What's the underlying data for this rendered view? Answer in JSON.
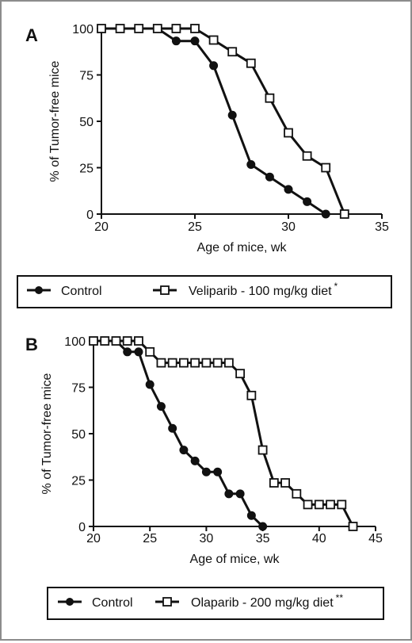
{
  "chart_data": [
    {
      "panel": "A",
      "type": "line",
      "xlabel": "Age of mice, wk",
      "ylabel": "% of Tumor-free mice",
      "xlim": [
        20,
        35
      ],
      "ylim": [
        0,
        100
      ],
      "xticks": [
        "20",
        "25",
        "30",
        "35"
      ],
      "yticks": [
        "0",
        "25",
        "50",
        "75",
        "100"
      ],
      "grid": false,
      "legend_position": "bottom",
      "series": [
        {
          "name": "Control",
          "marker": "filled-circle",
          "points": [
            [
              20,
              100
            ],
            [
              21,
              100
            ],
            [
              22,
              100
            ],
            [
              23,
              100
            ],
            [
              24,
              93.3
            ],
            [
              25,
              93.3
            ],
            [
              26,
              80
            ],
            [
              27,
              53.3
            ],
            [
              28,
              26.7
            ],
            [
              29,
              20
            ],
            [
              30,
              13.3
            ],
            [
              31,
              6.7
            ],
            [
              32,
              0
            ]
          ]
        },
        {
          "name": "Veliparib - 100 mg/kg diet",
          "significance": "*",
          "marker": "open-square",
          "points": [
            [
              20,
              100
            ],
            [
              21,
              100
            ],
            [
              22,
              100
            ],
            [
              23,
              100
            ],
            [
              24,
              100
            ],
            [
              25,
              100
            ],
            [
              26,
              93.8
            ],
            [
              27,
              87.5
            ],
            [
              28,
              81.3
            ],
            [
              29,
              62.5
            ],
            [
              30,
              43.8
            ],
            [
              31,
              31.3
            ],
            [
              32,
              25
            ],
            [
              33,
              0
            ]
          ]
        }
      ]
    },
    {
      "panel": "B",
      "type": "line",
      "xlabel": "Age of mice, wk",
      "ylabel": "% of Tumor-free mice",
      "xlim": [
        20,
        45
      ],
      "ylim": [
        0,
        100
      ],
      "xticks": [
        "20",
        "25",
        "30",
        "35",
        "40",
        "45"
      ],
      "yticks": [
        "0",
        "25",
        "50",
        "75",
        "100"
      ],
      "grid": false,
      "legend_position": "bottom",
      "series": [
        {
          "name": "Control",
          "marker": "filled-circle",
          "points": [
            [
              20,
              100
            ],
            [
              21,
              100
            ],
            [
              22,
              100
            ],
            [
              23,
              94.1
            ],
            [
              24,
              94.1
            ],
            [
              25,
              76.5
            ],
            [
              26,
              64.7
            ],
            [
              27,
              52.9
            ],
            [
              28,
              41.2
            ],
            [
              29,
              35.3
            ],
            [
              30,
              29.4
            ],
            [
              31,
              29.4
            ],
            [
              32,
              17.6
            ],
            [
              33,
              17.6
            ],
            [
              34,
              5.9
            ],
            [
              35,
              0
            ]
          ]
        },
        {
          "name": "Olaparib - 200 mg/kg diet",
          "significance": "**",
          "marker": "open-square",
          "points": [
            [
              20,
              100
            ],
            [
              21,
              100
            ],
            [
              22,
              100
            ],
            [
              23,
              100
            ],
            [
              24,
              100
            ],
            [
              25,
              94.1
            ],
            [
              26,
              88.2
            ],
            [
              27,
              88.2
            ],
            [
              28,
              88.2
            ],
            [
              29,
              88.2
            ],
            [
              30,
              88.2
            ],
            [
              31,
              88.2
            ],
            [
              32,
              88.2
            ],
            [
              33,
              82.4
            ],
            [
              34,
              70.6
            ],
            [
              35,
              41.2
            ],
            [
              36,
              23.5
            ],
            [
              37,
              23.5
            ],
            [
              38,
              17.6
            ],
            [
              39,
              11.8
            ],
            [
              40,
              11.8
            ],
            [
              41,
              11.8
            ],
            [
              42,
              11.8
            ],
            [
              43,
              0
            ]
          ]
        }
      ]
    }
  ]
}
